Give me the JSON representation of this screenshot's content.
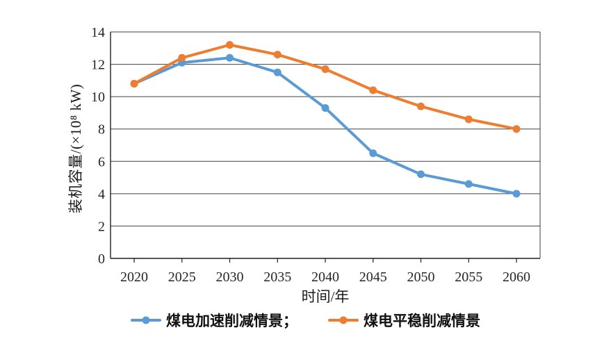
{
  "chart_data": {
    "type": "line",
    "title": "",
    "categories": [
      "2020",
      "2025",
      "2030",
      "2035",
      "2040",
      "2045",
      "2050",
      "2055",
      "2060"
    ],
    "series": [
      {
        "name": "煤电加速削减情景",
        "color": "#5B9BD5",
        "values": [
          10.8,
          12.1,
          12.4,
          11.5,
          9.3,
          6.5,
          5.2,
          4.6,
          4.0
        ]
      },
      {
        "name": "煤电平稳削减情景",
        "color": "#ED7D31",
        "values": [
          10.8,
          12.4,
          13.2,
          12.6,
          11.7,
          10.4,
          9.4,
          8.6,
          8.0
        ]
      }
    ],
    "xlabel": "时间/年",
    "ylabel": "装机容量/(×10⁸ kW)",
    "ylim": [
      0,
      14
    ],
    "yticks": [
      0,
      2,
      4,
      6,
      8,
      10,
      12,
      14
    ],
    "grid": true,
    "legend_position": "bottom",
    "marker": "circle",
    "colors": {
      "axis": "#1f1f1f",
      "grid": "#404040",
      "tick_text": "#262626"
    }
  },
  "legend": {
    "items": [
      {
        "label": "煤电加速削减情景；"
      },
      {
        "label": "煤电平稳削减情景"
      }
    ]
  }
}
